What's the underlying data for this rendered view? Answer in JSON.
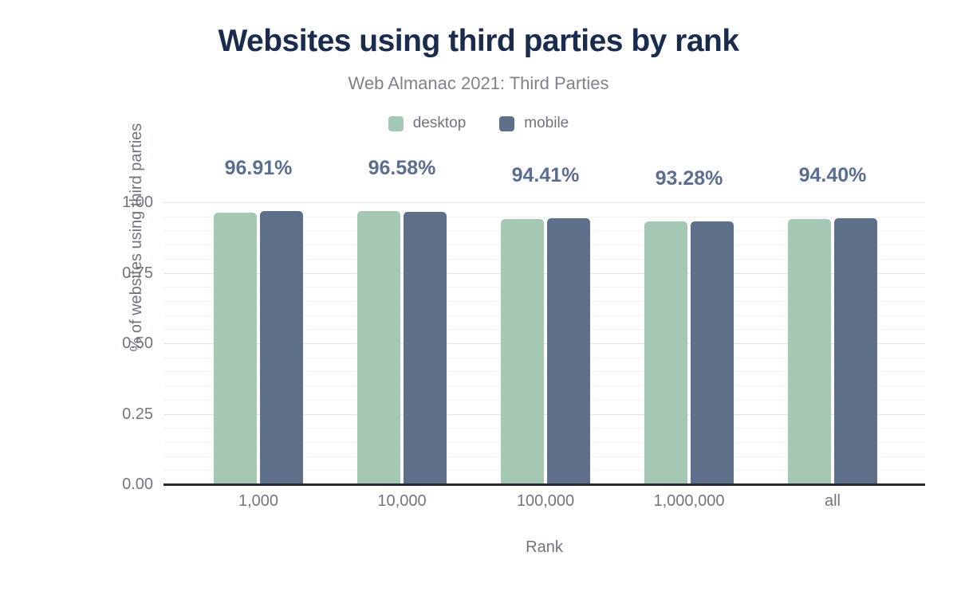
{
  "header": {
    "title": "Websites using third parties by rank",
    "subtitle": "Web Almanac 2021: Third Parties"
  },
  "legend": {
    "items": [
      {
        "label": "desktop",
        "color": "#a5c8b5"
      },
      {
        "label": "mobile",
        "color": "#5e7089"
      }
    ]
  },
  "chart_data": {
    "type": "bar",
    "title": "Websites using third parties by rank",
    "subtitle": "Web Almanac 2021: Third Parties",
    "categories": [
      "1,000",
      "10,000",
      "100,000",
      "1,000,000",
      "all"
    ],
    "series": [
      {
        "name": "desktop",
        "color": "#a5c8b5",
        "values": [
          0.963,
          0.969,
          0.942,
          0.931,
          0.941
        ]
      },
      {
        "name": "mobile",
        "color": "#5e7089",
        "values": [
          0.9691,
          0.9658,
          0.9441,
          0.9328,
          0.944
        ]
      }
    ],
    "value_labels": [
      "96.91%",
      "96.58%",
      "94.41%",
      "93.28%",
      "94.40%"
    ],
    "value_labels_source": "mobile",
    "xlabel": "Rank",
    "ylabel": "% of websites using third parties",
    "ylim": [
      0,
      1
    ],
    "yticks": [
      0,
      0.25,
      0.5,
      0.75,
      1
    ],
    "ytick_labels": [
      "0.00",
      "0.25",
      "0.50",
      "0.75",
      "1.00"
    ],
    "minor_grid_step": 0.05,
    "grid": true,
    "legend_position": "top"
  },
  "colors": {
    "title": "#1b2b4d",
    "subtitle": "#7d828b",
    "axis_text": "#71767e",
    "value_label": "#5b6e91",
    "axis_line": "#262b33",
    "gridline_major": "#e4e5e9",
    "gridline_minor": "#f2f2f5"
  }
}
